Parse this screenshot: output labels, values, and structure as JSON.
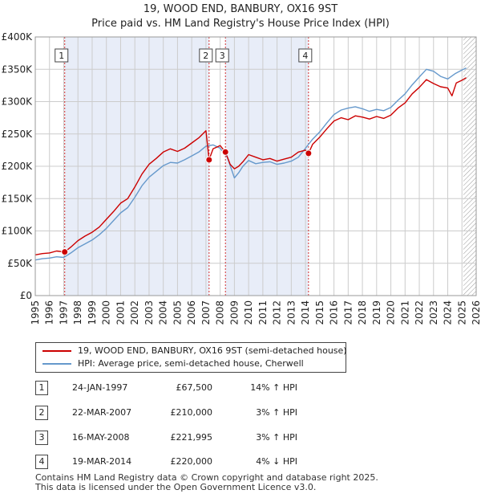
{
  "chart_data": {
    "type": "line",
    "title": "19, WOOD END, BANBURY, OX16 9ST",
    "subtitle": "Price paid vs. HM Land Registry's House Price Index (HPI)",
    "xlim": [
      1995,
      2026
    ],
    "ylim": [
      0,
      400000
    ],
    "x_ticks": [
      1995,
      1996,
      1997,
      1998,
      1999,
      2000,
      2001,
      2002,
      2003,
      2004,
      2005,
      2006,
      2007,
      2008,
      2009,
      2010,
      2011,
      2012,
      2013,
      2014,
      2015,
      2016,
      2017,
      2018,
      2019,
      2020,
      2021,
      2022,
      2023,
      2024,
      2025,
      2026
    ],
    "y_ticks": [
      {
        "value": 0,
        "label": "£0"
      },
      {
        "value": 50000,
        "label": "£50K"
      },
      {
        "value": 100000,
        "label": "£100K"
      },
      {
        "value": 150000,
        "label": "£150K"
      },
      {
        "value": 200000,
        "label": "£200K"
      },
      {
        "value": 250000,
        "label": "£250K"
      },
      {
        "value": 300000,
        "label": "£300K"
      },
      {
        "value": 350000,
        "label": "£350K"
      },
      {
        "value": 400000,
        "label": "£400K"
      }
    ],
    "grid": true,
    "series": [
      {
        "name": "19, WOOD END, BANBURY, OX16 9ST (semi-detached house)",
        "color": "#cc0000",
        "x": [
          1995.0,
          1995.5,
          1996.0,
          1996.5,
          1997.07,
          1997.5,
          1998.0,
          1998.5,
          1999.0,
          1999.5,
          2000.0,
          2000.5,
          2001.0,
          2001.5,
          2002.0,
          2002.5,
          2003.0,
          2003.5,
          2004.0,
          2004.5,
          2005.0,
          2005.5,
          2006.0,
          2006.5,
          2007.0,
          2007.22,
          2007.5,
          2008.0,
          2008.37,
          2008.7,
          2009.0,
          2009.3,
          2009.6,
          2010.0,
          2010.5,
          2011.0,
          2011.5,
          2012.0,
          2012.5,
          2013.0,
          2013.5,
          2014.0,
          2014.21,
          2014.5,
          2015.0,
          2015.5,
          2016.0,
          2016.5,
          2017.0,
          2017.5,
          2018.0,
          2018.5,
          2019.0,
          2019.5,
          2020.0,
          2020.5,
          2021.0,
          2021.5,
          2022.0,
          2022.5,
          2023.0,
          2023.5,
          2024.0,
          2024.3,
          2024.6,
          2025.0,
          2025.3
        ],
        "values": [
          63000,
          65000,
          66000,
          69000,
          67500,
          75000,
          85000,
          92000,
          98000,
          106000,
          118000,
          130000,
          143000,
          150000,
          168000,
          188000,
          203000,
          212000,
          222000,
          227000,
          223000,
          228000,
          236000,
          244000,
          255000,
          210000,
          227000,
          232000,
          221995,
          203000,
          196000,
          200000,
          207000,
          218000,
          214000,
          210000,
          212000,
          208000,
          211000,
          214000,
          222000,
          225000,
          220000,
          234000,
          245000,
          258000,
          270000,
          275000,
          272000,
          278000,
          276000,
          273000,
          277000,
          274000,
          279000,
          290000,
          298000,
          312000,
          322000,
          334000,
          328000,
          323000,
          321000,
          309000,
          329000,
          333000,
          337000
        ]
      },
      {
        "name": "HPI: Average price, semi-detached house, Cherwell",
        "color": "#6699cc",
        "x": [
          1995.0,
          1995.5,
          1996.0,
          1996.5,
          1997.0,
          1997.5,
          1998.0,
          1998.5,
          1999.0,
          1999.5,
          2000.0,
          2000.5,
          2001.0,
          2001.5,
          2002.0,
          2002.5,
          2003.0,
          2003.5,
          2004.0,
          2004.5,
          2005.0,
          2005.5,
          2006.0,
          2006.5,
          2007.0,
          2007.5,
          2008.0,
          2008.5,
          2008.8,
          2009.0,
          2009.3,
          2009.6,
          2010.0,
          2010.5,
          2011.0,
          2011.5,
          2012.0,
          2012.5,
          2013.0,
          2013.5,
          2014.0,
          2014.5,
          2015.0,
          2015.5,
          2016.0,
          2016.5,
          2017.0,
          2017.5,
          2018.0,
          2018.5,
          2019.0,
          2019.5,
          2020.0,
          2020.5,
          2021.0,
          2021.5,
          2022.0,
          2022.5,
          2023.0,
          2023.5,
          2024.0,
          2024.5,
          2025.0,
          2025.3
        ],
        "values": [
          55000,
          57000,
          58000,
          60000,
          59000,
          66000,
          74000,
          80000,
          86000,
          94000,
          104000,
          116000,
          128000,
          136000,
          152000,
          170000,
          183000,
          192000,
          201000,
          206000,
          205000,
          210000,
          216000,
          222000,
          231000,
          233000,
          228000,
          214000,
          195000,
          182000,
          190000,
          200000,
          209000,
          204000,
          206000,
          207000,
          203000,
          205000,
          208000,
          214000,
          228000,
          242000,
          253000,
          267000,
          280000,
          287000,
          290000,
          292000,
          289000,
          285000,
          288000,
          286000,
          291000,
          302000,
          312000,
          326000,
          338000,
          350000,
          347000,
          339000,
          335000,
          343000,
          349000,
          352000
        ]
      }
    ],
    "sales": [
      {
        "num": "1",
        "x": 1997.07,
        "value": 67500,
        "date": "24-JAN-1997",
        "price": "£67,500",
        "hpi_delta": "14% ↑ HPI"
      },
      {
        "num": "2",
        "x": 2007.22,
        "value": 210000,
        "date": "22-MAR-2007",
        "price": "£210,000",
        "hpi_delta": "3% ↑ HPI"
      },
      {
        "num": "3",
        "x": 2008.37,
        "value": 221995,
        "date": "16-MAY-2008",
        "price": "£221,995",
        "hpi_delta": "3% ↑ HPI"
      },
      {
        "num": "4",
        "x": 2014.21,
        "value": 220000,
        "date": "19-MAR-2014",
        "price": "£220,000",
        "hpi_delta": "4% ↓ HPI"
      }
    ],
    "shaded_regions": [
      [
        1997.07,
        2007.22
      ],
      [
        2008.37,
        2014.21
      ]
    ],
    "hatched_after": 2025.1,
    "colors": {
      "shade": "#e8edf8",
      "grid": "#cccccc",
      "marker": "#cc0000"
    }
  },
  "footer": {
    "line1": "Contains HM Land Registry data © Crown copyright and database right 2025.",
    "line2": "This data is licensed under the Open Government Licence v3.0."
  }
}
